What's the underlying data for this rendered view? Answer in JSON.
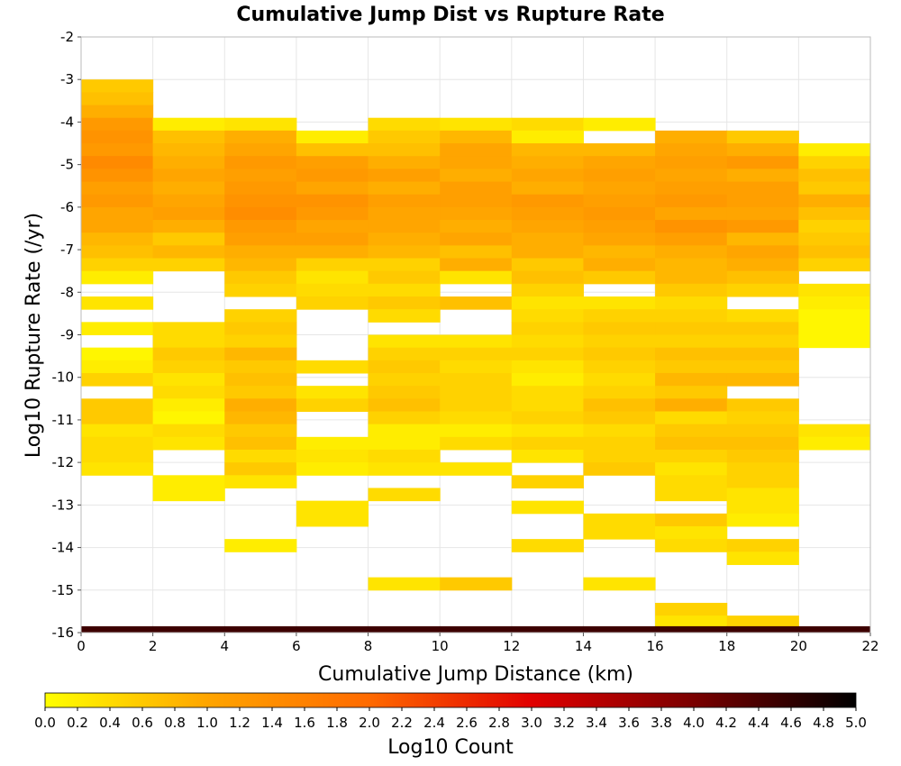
{
  "chart_data": {
    "type": "heatmap",
    "title": "Cumulative Jump Dist vs Rupture Rate",
    "xlabel": "Cumulative Jump Distance (km)",
    "ylabel": "Log10 Rupture Rate (/yr)",
    "xlim": [
      0,
      22
    ],
    "ylim": [
      -16,
      -2
    ],
    "x_ticks": [
      "0",
      "2",
      "4",
      "6",
      "8",
      "10",
      "12",
      "14",
      "16",
      "18",
      "20",
      "22"
    ],
    "y_ticks": [
      "-2",
      "-3",
      "-4",
      "-5",
      "-6",
      "-7",
      "-8",
      "-9",
      "-10",
      "-11",
      "-12",
      "-13",
      "-14",
      "-15",
      "-16"
    ],
    "x_bin_width": 2,
    "y_bin_height": 0.3,
    "cells": [
      [
        0,
        -3.0,
        0.6
      ],
      [
        0,
        -3.3,
        0.7
      ],
      [
        0,
        -3.6,
        0.9
      ],
      [
        0,
        -3.9,
        1.2
      ],
      [
        0,
        -4.2,
        1.3
      ],
      [
        0,
        -4.5,
        1.2
      ],
      [
        0,
        -4.8,
        1.45
      ],
      [
        0,
        -5.1,
        1.3
      ],
      [
        0,
        -5.4,
        1.1
      ],
      [
        0,
        -5.7,
        1.2
      ],
      [
        0,
        -6.0,
        1.0
      ],
      [
        0,
        -6.3,
        1.0
      ],
      [
        0,
        -6.6,
        0.8
      ],
      [
        0,
        -6.9,
        0.7
      ],
      [
        0,
        -7.2,
        0.5
      ],
      [
        0,
        -7.5,
        0.2
      ],
      [
        0,
        -8.1,
        0.3
      ],
      [
        0,
        -8.7,
        0.2
      ],
      [
        0,
        -9.3,
        0.1
      ],
      [
        0,
        -9.6,
        0.2
      ],
      [
        0,
        -9.9,
        0.5
      ],
      [
        0,
        -10.5,
        0.6
      ],
      [
        0,
        -10.8,
        0.6
      ],
      [
        0,
        -11.1,
        0.3
      ],
      [
        0,
        -11.4,
        0.4
      ],
      [
        0,
        -11.7,
        0.4
      ],
      [
        0,
        -12.0,
        0.3
      ],
      [
        2,
        -3.9,
        0.2
      ],
      [
        2,
        -4.2,
        0.7
      ],
      [
        2,
        -4.5,
        0.8
      ],
      [
        2,
        -4.8,
        0.9
      ],
      [
        2,
        -5.1,
        1.0
      ],
      [
        2,
        -5.4,
        0.9
      ],
      [
        2,
        -5.7,
        1.0
      ],
      [
        2,
        -6.0,
        1.1
      ],
      [
        2,
        -6.3,
        0.9
      ],
      [
        2,
        -6.6,
        0.6
      ],
      [
        2,
        -6.9,
        0.8
      ],
      [
        2,
        -7.2,
        0.5
      ],
      [
        2,
        -8.7,
        0.4
      ],
      [
        2,
        -9.0,
        0.4
      ],
      [
        2,
        -9.3,
        0.6
      ],
      [
        2,
        -9.6,
        0.5
      ],
      [
        2,
        -9.9,
        0.3
      ],
      [
        2,
        -10.2,
        0.4
      ],
      [
        2,
        -10.5,
        0.2
      ],
      [
        2,
        -10.8,
        0.1
      ],
      [
        2,
        -11.1,
        0.4
      ],
      [
        2,
        -11.4,
        0.3
      ],
      [
        2,
        -12.3,
        0.2
      ],
      [
        2,
        -12.6,
        0.2
      ],
      [
        4,
        -3.9,
        0.3
      ],
      [
        4,
        -4.2,
        0.9
      ],
      [
        4,
        -4.5,
        1.0
      ],
      [
        4,
        -4.8,
        1.2
      ],
      [
        4,
        -5.1,
        1.1
      ],
      [
        4,
        -5.4,
        1.2
      ],
      [
        4,
        -5.7,
        1.3
      ],
      [
        4,
        -6.0,
        1.4
      ],
      [
        4,
        -6.3,
        1.2
      ],
      [
        4,
        -6.6,
        1.1
      ],
      [
        4,
        -6.9,
        0.9
      ],
      [
        4,
        -7.2,
        0.8
      ],
      [
        4,
        -7.5,
        0.6
      ],
      [
        4,
        -7.8,
        0.5
      ],
      [
        4,
        -8.4,
        0.5
      ],
      [
        4,
        -8.7,
        0.6
      ],
      [
        4,
        -9.0,
        0.5
      ],
      [
        4,
        -9.3,
        0.8
      ],
      [
        4,
        -9.6,
        0.6
      ],
      [
        4,
        -9.9,
        0.7
      ],
      [
        4,
        -10.2,
        0.6
      ],
      [
        4,
        -10.5,
        0.9
      ],
      [
        4,
        -10.8,
        0.8
      ],
      [
        4,
        -11.1,
        0.6
      ],
      [
        4,
        -11.4,
        0.7
      ],
      [
        4,
        -11.7,
        0.4
      ],
      [
        4,
        -12.0,
        0.6
      ],
      [
        4,
        -12.3,
        0.3
      ],
      [
        4,
        -13.8,
        0.2
      ],
      [
        6,
        -4.2,
        0.2
      ],
      [
        6,
        -4.5,
        0.7
      ],
      [
        6,
        -4.8,
        1.1
      ],
      [
        6,
        -5.1,
        1.2
      ],
      [
        6,
        -5.4,
        1.0
      ],
      [
        6,
        -5.7,
        1.3
      ],
      [
        6,
        -6.0,
        1.2
      ],
      [
        6,
        -6.3,
        1.0
      ],
      [
        6,
        -6.6,
        1.1
      ],
      [
        6,
        -6.9,
        0.9
      ],
      [
        6,
        -7.2,
        0.5
      ],
      [
        6,
        -7.5,
        0.3
      ],
      [
        6,
        -7.8,
        0.4
      ],
      [
        6,
        -8.1,
        0.5
      ],
      [
        6,
        -9.6,
        0.4
      ],
      [
        6,
        -10.2,
        0.3
      ],
      [
        6,
        -10.5,
        0.5
      ],
      [
        6,
        -11.4,
        0.2
      ],
      [
        6,
        -11.7,
        0.3
      ],
      [
        6,
        -12.0,
        0.2
      ],
      [
        6,
        -12.9,
        0.3
      ],
      [
        6,
        -13.2,
        0.3
      ],
      [
        8,
        -3.9,
        0.4
      ],
      [
        8,
        -4.2,
        0.6
      ],
      [
        8,
        -4.5,
        0.7
      ],
      [
        8,
        -4.8,
        0.9
      ],
      [
        8,
        -5.1,
        1.1
      ],
      [
        8,
        -5.4,
        0.9
      ],
      [
        8,
        -5.7,
        1.1
      ],
      [
        8,
        -6.0,
        1.0
      ],
      [
        8,
        -6.3,
        1.0
      ],
      [
        8,
        -6.6,
        0.9
      ],
      [
        8,
        -6.9,
        0.8
      ],
      [
        8,
        -7.2,
        0.5
      ],
      [
        8,
        -7.5,
        0.6
      ],
      [
        8,
        -7.8,
        0.4
      ],
      [
        8,
        -8.1,
        0.6
      ],
      [
        8,
        -8.4,
        0.4
      ],
      [
        8,
        -9.0,
        0.3
      ],
      [
        8,
        -9.3,
        0.5
      ],
      [
        8,
        -9.6,
        0.6
      ],
      [
        8,
        -9.9,
        0.5
      ],
      [
        8,
        -10.2,
        0.6
      ],
      [
        8,
        -10.5,
        0.7
      ],
      [
        8,
        -10.8,
        0.5
      ],
      [
        8,
        -11.1,
        0.2
      ],
      [
        8,
        -11.4,
        0.2
      ],
      [
        8,
        -11.7,
        0.4
      ],
      [
        8,
        -12.0,
        0.3
      ],
      [
        8,
        -12.6,
        0.4
      ],
      [
        8,
        -14.7,
        0.3
      ],
      [
        10,
        -3.9,
        0.3
      ],
      [
        10,
        -4.2,
        0.8
      ],
      [
        10,
        -4.5,
        1.0
      ],
      [
        10,
        -4.8,
        1.0
      ],
      [
        10,
        -5.1,
        0.9
      ],
      [
        10,
        -5.4,
        1.1
      ],
      [
        10,
        -5.7,
        1.1
      ],
      [
        10,
        -6.0,
        1.0
      ],
      [
        10,
        -6.3,
        0.9
      ],
      [
        10,
        -6.6,
        1.0
      ],
      [
        10,
        -6.9,
        0.7
      ],
      [
        10,
        -7.2,
        0.9
      ],
      [
        10,
        -7.5,
        0.3
      ],
      [
        10,
        -8.1,
        0.7
      ],
      [
        10,
        -9.0,
        0.3
      ],
      [
        10,
        -9.3,
        0.5
      ],
      [
        10,
        -9.6,
        0.4
      ],
      [
        10,
        -9.9,
        0.5
      ],
      [
        10,
        -10.2,
        0.5
      ],
      [
        10,
        -10.5,
        0.5
      ],
      [
        10,
        -10.8,
        0.4
      ],
      [
        10,
        -11.1,
        0.2
      ],
      [
        10,
        -11.4,
        0.4
      ],
      [
        10,
        -12.0,
        0.3
      ],
      [
        10,
        -14.7,
        0.6
      ],
      [
        12,
        -3.9,
        0.4
      ],
      [
        12,
        -4.2,
        0.2
      ],
      [
        12,
        -4.5,
        0.8
      ],
      [
        12,
        -4.8,
        0.9
      ],
      [
        12,
        -5.1,
        1.0
      ],
      [
        12,
        -5.4,
        0.9
      ],
      [
        12,
        -5.7,
        1.2
      ],
      [
        12,
        -6.0,
        1.1
      ],
      [
        12,
        -6.3,
        1.0
      ],
      [
        12,
        -6.6,
        0.9
      ],
      [
        12,
        -6.9,
        0.9
      ],
      [
        12,
        -7.2,
        0.6
      ],
      [
        12,
        -7.5,
        0.7
      ],
      [
        12,
        -7.8,
        0.5
      ],
      [
        12,
        -8.1,
        0.3
      ],
      [
        12,
        -8.4,
        0.4
      ],
      [
        12,
        -8.7,
        0.5
      ],
      [
        12,
        -9.0,
        0.4
      ],
      [
        12,
        -9.3,
        0.5
      ],
      [
        12,
        -9.6,
        0.3
      ],
      [
        12,
        -9.9,
        0.2
      ],
      [
        12,
        -10.2,
        0.4
      ],
      [
        12,
        -10.5,
        0.4
      ],
      [
        12,
        -10.8,
        0.5
      ],
      [
        12,
        -11.1,
        0.3
      ],
      [
        12,
        -11.4,
        0.5
      ],
      [
        12,
        -11.7,
        0.3
      ],
      [
        12,
        -12.3,
        0.5
      ],
      [
        12,
        -12.9,
        0.3
      ],
      [
        12,
        -13.8,
        0.4
      ],
      [
        14,
        -3.9,
        0.2
      ],
      [
        14,
        -4.5,
        0.8
      ],
      [
        14,
        -4.8,
        1.0
      ],
      [
        14,
        -5.1,
        1.1
      ],
      [
        14,
        -5.4,
        1.0
      ],
      [
        14,
        -5.7,
        1.1
      ],
      [
        14,
        -6.0,
        1.2
      ],
      [
        14,
        -6.3,
        1.1
      ],
      [
        14,
        -6.6,
        1.0
      ],
      [
        14,
        -6.9,
        0.8
      ],
      [
        14,
        -7.2,
        0.9
      ],
      [
        14,
        -7.5,
        0.6
      ],
      [
        14,
        -8.1,
        0.3
      ],
      [
        14,
        -8.4,
        0.5
      ],
      [
        14,
        -8.7,
        0.6
      ],
      [
        14,
        -9.0,
        0.5
      ],
      [
        14,
        -9.3,
        0.6
      ],
      [
        14,
        -9.6,
        0.5
      ],
      [
        14,
        -9.9,
        0.4
      ],
      [
        14,
        -10.2,
        0.5
      ],
      [
        14,
        -10.5,
        0.7
      ],
      [
        14,
        -10.8,
        0.6
      ],
      [
        14,
        -11.1,
        0.4
      ],
      [
        14,
        -11.4,
        0.5
      ],
      [
        14,
        -11.7,
        0.5
      ],
      [
        14,
        -12.0,
        0.6
      ],
      [
        14,
        -13.2,
        0.4
      ],
      [
        14,
        -13.5,
        0.4
      ],
      [
        14,
        -14.7,
        0.3
      ],
      [
        16,
        -4.2,
        0.9
      ],
      [
        16,
        -4.5,
        1.0
      ],
      [
        16,
        -4.8,
        1.1
      ],
      [
        16,
        -5.1,
        1.0
      ],
      [
        16,
        -5.4,
        1.1
      ],
      [
        16,
        -5.7,
        1.2
      ],
      [
        16,
        -6.0,
        1.0
      ],
      [
        16,
        -6.3,
        1.3
      ],
      [
        16,
        -6.6,
        1.1
      ],
      [
        16,
        -6.9,
        0.9
      ],
      [
        16,
        -7.2,
        0.8
      ],
      [
        16,
        -7.5,
        0.8
      ],
      [
        16,
        -7.8,
        0.6
      ],
      [
        16,
        -8.1,
        0.4
      ],
      [
        16,
        -8.4,
        0.5
      ],
      [
        16,
        -8.7,
        0.6
      ],
      [
        16,
        -9.0,
        0.5
      ],
      [
        16,
        -9.3,
        0.7
      ],
      [
        16,
        -9.6,
        0.6
      ],
      [
        16,
        -9.9,
        0.8
      ],
      [
        16,
        -10.2,
        0.6
      ],
      [
        16,
        -10.5,
        0.9
      ],
      [
        16,
        -10.8,
        0.4
      ],
      [
        16,
        -11.1,
        0.6
      ],
      [
        16,
        -11.4,
        0.7
      ],
      [
        16,
        -11.7,
        0.5
      ],
      [
        16,
        -12.0,
        0.3
      ],
      [
        16,
        -12.3,
        0.4
      ],
      [
        16,
        -12.6,
        0.4
      ],
      [
        16,
        -13.2,
        0.6
      ],
      [
        16,
        -13.5,
        0.3
      ],
      [
        16,
        -13.8,
        0.4
      ],
      [
        16,
        -15.3,
        0.5
      ],
      [
        16,
        -15.6,
        0.3
      ],
      [
        18,
        -4.2,
        0.6
      ],
      [
        18,
        -4.5,
        0.9
      ],
      [
        18,
        -4.8,
        1.2
      ],
      [
        18,
        -5.1,
        0.9
      ],
      [
        18,
        -5.4,
        1.1
      ],
      [
        18,
        -5.7,
        1.1
      ],
      [
        18,
        -6.0,
        1.0
      ],
      [
        18,
        -6.3,
        1.2
      ],
      [
        18,
        -6.6,
        0.8
      ],
      [
        18,
        -6.9,
        1.0
      ],
      [
        18,
        -7.2,
        0.9
      ],
      [
        18,
        -7.5,
        0.7
      ],
      [
        18,
        -7.8,
        0.5
      ],
      [
        18,
        -8.4,
        0.4
      ],
      [
        18,
        -8.7,
        0.6
      ],
      [
        18,
        -9.0,
        0.5
      ],
      [
        18,
        -9.3,
        0.7
      ],
      [
        18,
        -9.6,
        0.6
      ],
      [
        18,
        -9.9,
        0.8
      ],
      [
        18,
        -10.5,
        0.6
      ],
      [
        18,
        -10.8,
        0.5
      ],
      [
        18,
        -11.1,
        0.6
      ],
      [
        18,
        -11.4,
        0.7
      ],
      [
        18,
        -11.7,
        0.6
      ],
      [
        18,
        -12.0,
        0.5
      ],
      [
        18,
        -12.3,
        0.5
      ],
      [
        18,
        -12.6,
        0.3
      ],
      [
        18,
        -12.9,
        0.3
      ],
      [
        18,
        -13.2,
        0.2
      ],
      [
        18,
        -13.8,
        0.5
      ],
      [
        18,
        -14.1,
        0.3
      ],
      [
        18,
        -15.6,
        0.5
      ],
      [
        20,
        -4.5,
        0.2
      ],
      [
        20,
        -4.8,
        0.5
      ],
      [
        20,
        -5.1,
        0.7
      ],
      [
        20,
        -5.4,
        0.6
      ],
      [
        20,
        -5.7,
        0.9
      ],
      [
        20,
        -6.0,
        0.7
      ],
      [
        20,
        -6.3,
        0.5
      ],
      [
        20,
        -6.6,
        0.6
      ],
      [
        20,
        -6.9,
        0.7
      ],
      [
        20,
        -7.2,
        0.5
      ],
      [
        20,
        -7.8,
        0.3
      ],
      [
        20,
        -8.1,
        0.2
      ],
      [
        20,
        -8.4,
        0.1
      ],
      [
        20,
        -8.7,
        0.1
      ],
      [
        20,
        -9.0,
        0.1
      ],
      [
        20,
        -11.1,
        0.3
      ],
      [
        20,
        -11.4,
        0.2
      ]
    ],
    "floor_row": {
      "y": -16,
      "values": [
        4.5,
        4.5,
        4.5,
        4.5,
        4.5,
        4.5,
        4.5,
        4.5,
        4.5,
        4.5,
        4.5
      ]
    },
    "colorbar": {
      "label": "Log10 Count",
      "min": 0.0,
      "max": 5.0,
      "ticks": [
        "0.0",
        "0.2",
        "0.4",
        "0.6",
        "0.8",
        "1.0",
        "1.2",
        "1.4",
        "1.6",
        "1.8",
        "2.0",
        "2.2",
        "2.4",
        "2.6",
        "2.8",
        "3.0",
        "3.2",
        "3.4",
        "3.6",
        "3.8",
        "4.0",
        "4.2",
        "4.4",
        "4.6",
        "4.8",
        "5.0"
      ],
      "colormap": [
        "#ffff00",
        "#ffa500",
        "#ff6a00",
        "#e10000",
        "#7a0000",
        "#000000"
      ]
    },
    "grid": true,
    "legend": "colorbar-bottom"
  }
}
